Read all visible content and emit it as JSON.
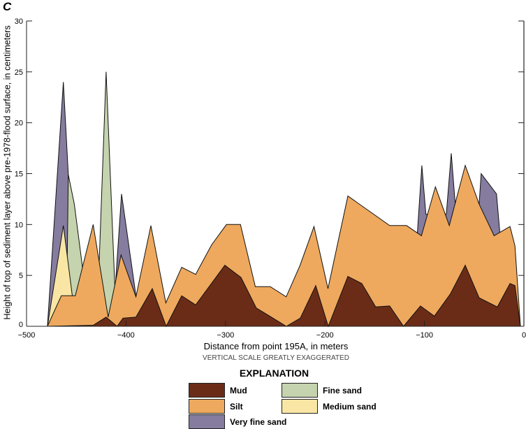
{
  "chart_data": {
    "type": "area",
    "panel_label": "C",
    "xlabel": "Distance from point 195A, in meters",
    "ylabel": "Height of top of sediment layer above pre-1978-flood surface, in centimeters",
    "note": "VERTICAL SCALE GREATLY EXAGGERATED",
    "xlim": [
      -500,
      0
    ],
    "ylim": [
      0,
      30
    ],
    "xticks": [
      -500,
      -400,
      -300,
      -200,
      -100,
      0
    ],
    "xtick_labels": [
      "−500",
      "−400",
      "−300",
      "−200",
      "−100",
      "0"
    ],
    "yticks": [
      0,
      5,
      10,
      15,
      20,
      25,
      30
    ],
    "ytick_labels": [
      "0",
      "5",
      "10",
      "15",
      "20",
      "25",
      "30"
    ],
    "legend_title": "EXPLANATION",
    "legend_placement": "bottom",
    "series": [
      {
        "name": "Very fine sand",
        "color": "#857c9f",
        "points": [
          [
            -479,
            0
          ],
          [
            -463,
            24
          ],
          [
            -458,
            14.9
          ],
          [
            -451,
            3
          ],
          [
            -446,
            0
          ],
          [
            -430,
            0
          ],
          [
            -424,
            3
          ],
          [
            -417,
            7
          ],
          [
            -412,
            2
          ],
          [
            -409,
            6.5
          ],
          [
            -404.5,
            13
          ],
          [
            -390,
            3
          ],
          [
            -386,
            0
          ],
          [
            -120,
            0
          ],
          [
            -107,
            9.3
          ],
          [
            -102.6,
            15.8
          ],
          [
            -98.5,
            11
          ],
          [
            -78,
            11
          ],
          [
            -73,
            17
          ],
          [
            -69,
            12
          ],
          [
            -45,
            12
          ],
          [
            -43,
            15
          ],
          [
            -27.5,
            13
          ],
          [
            -24,
            9
          ],
          [
            -20,
            0
          ]
        ]
      },
      {
        "name": "Fine sand",
        "color": "#c5d3ae",
        "points": [
          [
            -460,
            0
          ],
          [
            -458,
            14.9
          ],
          [
            -452,
            12
          ],
          [
            -444,
            6
          ],
          [
            -440,
            0
          ],
          [
            -431,
            0
          ],
          [
            -428,
            3.5
          ],
          [
            -420,
            25
          ],
          [
            -411,
            3.4
          ],
          [
            -408,
            0
          ]
        ]
      },
      {
        "name": "Medium sand",
        "color": "#f9e6a4",
        "points": [
          [
            -479,
            0
          ],
          [
            -463,
            9.9
          ],
          [
            -454,
            3
          ],
          [
            -451,
            0
          ]
        ]
      },
      {
        "name": "Silt",
        "color": "#eea95e",
        "points": [
          [
            -479,
            0
          ],
          [
            -465,
            3
          ],
          [
            -451,
            3
          ],
          [
            -433,
            10
          ],
          [
            -418,
            0.9
          ],
          [
            -405,
            7
          ],
          [
            -390,
            2.9
          ],
          [
            -375,
            9.9
          ],
          [
            -360,
            2.3
          ],
          [
            -344,
            5.8
          ],
          [
            -330,
            5.1
          ],
          [
            -314,
            8
          ],
          [
            -299,
            10
          ],
          [
            -285,
            10
          ],
          [
            -270,
            3.9
          ],
          [
            -255,
            3.9
          ],
          [
            -239,
            2.9
          ],
          [
            -225,
            6
          ],
          [
            -211,
            9.8
          ],
          [
            -197,
            3.7
          ],
          [
            -177,
            12.8
          ],
          [
            -135,
            9.9
          ],
          [
            -118,
            9.9
          ],
          [
            -103,
            8.9
          ],
          [
            -89,
            13.7
          ],
          [
            -75,
            9.9
          ],
          [
            -59,
            15.8
          ],
          [
            -45,
            12
          ],
          [
            -30,
            8.9
          ],
          [
            -14,
            9.8
          ],
          [
            -9,
            7.9
          ],
          [
            -3.5,
            0
          ]
        ]
      },
      {
        "name": "Mud",
        "color": "#6b2c17",
        "points": [
          [
            -500,
            0
          ],
          [
            -479,
            0
          ],
          [
            -433,
            0.1
          ],
          [
            -420,
            0.9
          ],
          [
            -409,
            0
          ],
          [
            -403,
            0.8
          ],
          [
            -390,
            0.9
          ],
          [
            -373.6,
            3.7
          ],
          [
            -359.6,
            0
          ],
          [
            -344,
            3
          ],
          [
            -330,
            2.1
          ],
          [
            -300.6,
            6
          ],
          [
            -284.4,
            4.8
          ],
          [
            -269,
            1.8
          ],
          [
            -238.8,
            0
          ],
          [
            -224.8,
            0.8
          ],
          [
            -209.3,
            4
          ],
          [
            -196.7,
            0
          ],
          [
            -177,
            4.9
          ],
          [
            -163,
            4.2
          ],
          [
            -149,
            1.9
          ],
          [
            -135,
            2
          ],
          [
            -121,
            0
          ],
          [
            -104,
            2
          ],
          [
            -90,
            1
          ],
          [
            -73.8,
            3.2
          ],
          [
            -59,
            6
          ],
          [
            -45,
            2.8
          ],
          [
            -26.7,
            1.9
          ],
          [
            -14,
            4.2
          ],
          [
            -9,
            4
          ],
          [
            -3.5,
            0
          ]
        ]
      }
    ],
    "legend": [
      {
        "name": "Mud",
        "color": "#6b2c17"
      },
      {
        "name": "Fine sand",
        "color": "#c5d3ae"
      },
      {
        "name": "Silt",
        "color": "#eea95e"
      },
      {
        "name": "Medium sand",
        "color": "#f9e6a4"
      },
      {
        "name": "Very fine sand",
        "color": "#857c9f"
      }
    ]
  }
}
